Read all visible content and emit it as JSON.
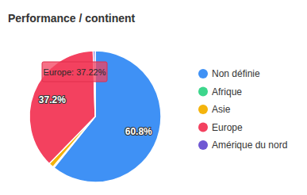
{
  "chart_data": {
    "type": "pie",
    "title": "Performance / continent",
    "categories": [
      "Non définie",
      "Afrique",
      "Asie",
      "Europe",
      "Amérique du nord"
    ],
    "values": [
      60.8,
      0.3,
      1.2,
      37.22,
      0.48
    ],
    "value_labels": [
      "60.8%",
      null,
      null,
      "37.2%",
      null
    ],
    "colors": [
      "#3f91f5",
      "#3dd68c",
      "#f4b40c",
      "#f3415f",
      "#6f58d3"
    ],
    "data_labels": true,
    "legend": "right",
    "annotations": [
      "Europe: 37.22%"
    ]
  }
}
